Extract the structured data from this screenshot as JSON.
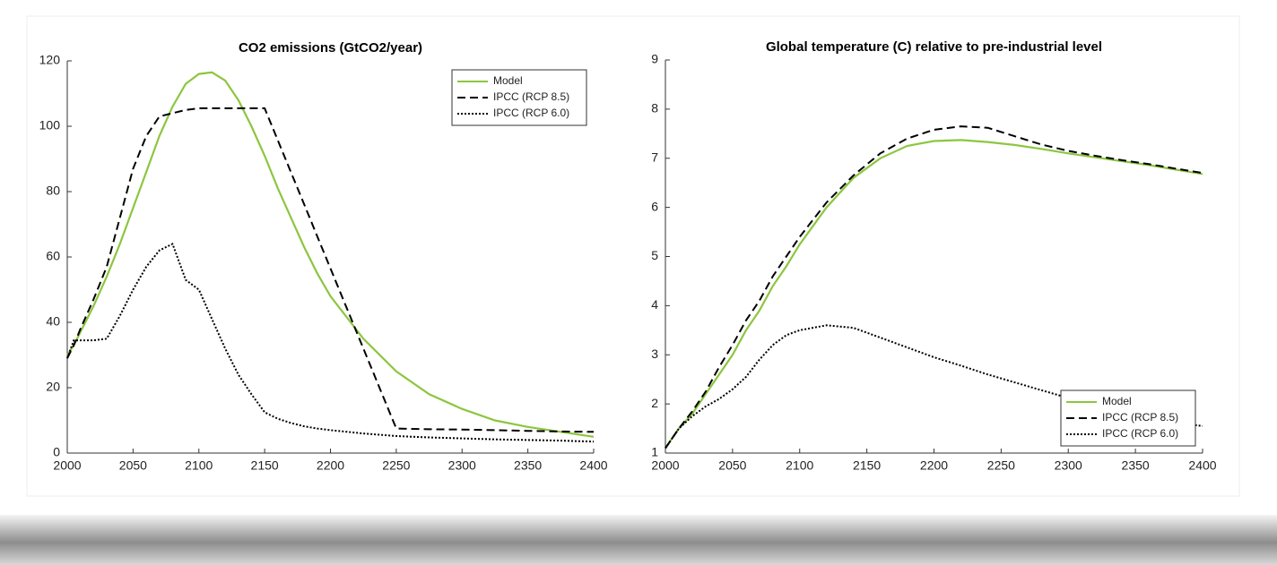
{
  "chart_data": [
    {
      "type": "line",
      "title": "CO2 emissions (GtCO2/year)",
      "x": [
        2000,
        2005,
        2010,
        2020,
        2030,
        2040,
        2050,
        2060,
        2070,
        2080,
        2090,
        2100,
        2110,
        2120,
        2130,
        2140,
        2150,
        2160,
        2170,
        2180,
        2190,
        2200,
        2225,
        2250,
        2275,
        2300,
        2325,
        2350,
        2375,
        2400
      ],
      "series": [
        {
          "name": "Model",
          "color": "#8cc63f",
          "line_style": "solid",
          "values": [
            30,
            33,
            37,
            45,
            54,
            64,
            75,
            86,
            97,
            106,
            113,
            116,
            116.5,
            114,
            108,
            100,
            91,
            81,
            72,
            63,
            55,
            48,
            35,
            25,
            18,
            13.5,
            10,
            8,
            6.5,
            5
          ]
        },
        {
          "name": "IPCC (RCP 8.5)",
          "color": "#000000",
          "line_style": "dashed",
          "values": [
            29,
            33,
            38,
            47,
            57,
            72,
            87,
            97,
            103,
            104,
            105,
            105.5,
            105.5,
            105.5,
            105.5,
            105.5,
            105.5,
            95.7,
            85.9,
            76.1,
            66.3,
            56.5,
            32,
            7.5,
            7.3,
            7.2,
            7,
            6.8,
            6.6,
            6.5
          ]
        },
        {
          "name": "IPCC (RCP 6.0)",
          "color": "#000000",
          "line_style": "dotted",
          "values": [
            29,
            34.5,
            34.5,
            34.5,
            35,
            42,
            50,
            57,
            62,
            64,
            53,
            50,
            41,
            32,
            24,
            18,
            12.5,
            10.5,
            9.2,
            8.2,
            7.5,
            7,
            6,
            5.2,
            4.8,
            4.5,
            4.2,
            4,
            3.8,
            3.5
          ]
        }
      ],
      "xlim": [
        2000,
        2400
      ],
      "xticks": [
        2000,
        2050,
        2100,
        2150,
        2200,
        2250,
        2300,
        2350,
        2400
      ],
      "ylim": [
        0,
        120
      ],
      "yticks": [
        0,
        20,
        40,
        60,
        80,
        100,
        120
      ],
      "grid": false,
      "legend": "northeast"
    },
    {
      "type": "line",
      "title": "Global temperature (C) relative to pre-industrial level",
      "x": [
        2000,
        2010,
        2020,
        2030,
        2040,
        2050,
        2060,
        2070,
        2080,
        2090,
        2100,
        2120,
        2140,
        2160,
        2180,
        2200,
        2220,
        2240,
        2260,
        2280,
        2300,
        2320,
        2340,
        2360,
        2380,
        2400
      ],
      "series": [
        {
          "name": "Model",
          "color": "#8cc63f",
          "line_style": "solid",
          "values": [
            1.1,
            1.5,
            1.8,
            2.2,
            2.6,
            3.0,
            3.5,
            3.9,
            4.4,
            4.8,
            5.25,
            6.0,
            6.6,
            7.0,
            7.25,
            7.35,
            7.37,
            7.33,
            7.27,
            7.19,
            7.1,
            7.02,
            6.94,
            6.86,
            6.77,
            6.68
          ]
        },
        {
          "name": "IPCC (RCP 8.5)",
          "color": "#000000",
          "line_style": "dashed",
          "values": [
            1.1,
            1.5,
            1.85,
            2.25,
            2.75,
            3.2,
            3.7,
            4.1,
            4.6,
            5.0,
            5.4,
            6.1,
            6.65,
            7.1,
            7.4,
            7.58,
            7.65,
            7.62,
            7.45,
            7.28,
            7.15,
            7.05,
            6.96,
            6.88,
            6.79,
            6.7
          ]
        },
        {
          "name": "IPCC (RCP 6.0)",
          "color": "#000000",
          "line_style": "dotted",
          "values": [
            1.1,
            1.5,
            1.75,
            1.95,
            2.1,
            2.3,
            2.55,
            2.9,
            3.2,
            3.4,
            3.5,
            3.6,
            3.55,
            3.35,
            3.15,
            2.95,
            2.78,
            2.6,
            2.44,
            2.28,
            2.12,
            1.98,
            1.85,
            1.72,
            1.62,
            1.55
          ]
        }
      ],
      "xlim": [
        2000,
        2400
      ],
      "xticks": [
        2000,
        2050,
        2100,
        2150,
        2200,
        2250,
        2300,
        2350,
        2400
      ],
      "ylim": [
        1,
        9
      ],
      "yticks": [
        1,
        2,
        3,
        4,
        5,
        6,
        7,
        8,
        9
      ],
      "grid": false,
      "legend": "southeast"
    }
  ]
}
